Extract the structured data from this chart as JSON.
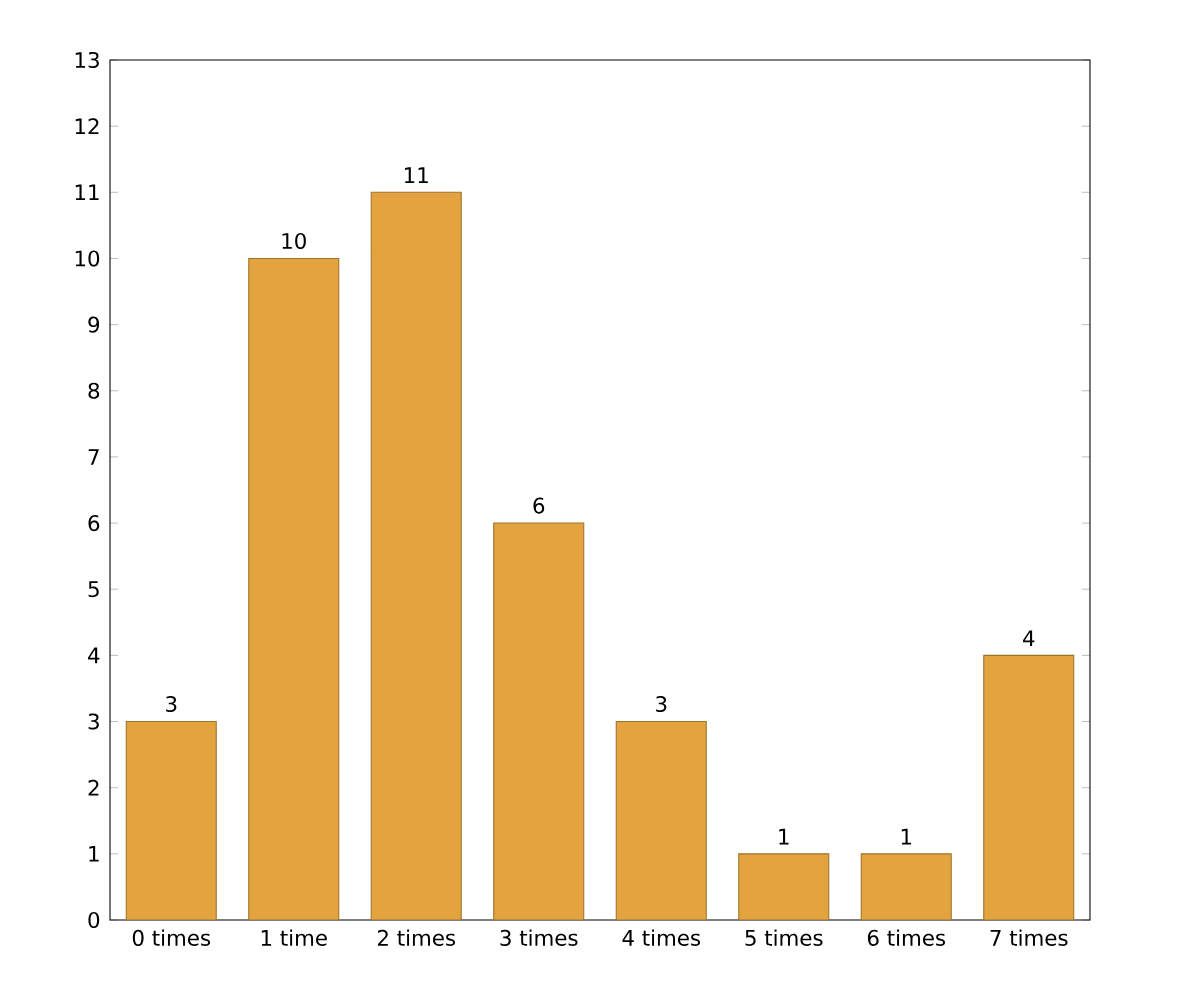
{
  "chart_data": {
    "type": "bar",
    "categories": [
      "0 times",
      "1 time",
      "2 times",
      "3 times",
      "4 times",
      "5 times",
      "6 times",
      "7 times"
    ],
    "values": [
      3,
      10,
      11,
      6,
      3,
      1,
      1,
      4
    ],
    "color": "#e3a33f",
    "ylim": [
      0,
      13
    ],
    "yticks": [
      0,
      1,
      2,
      3,
      4,
      5,
      6,
      7,
      8,
      9,
      10,
      11,
      12,
      13
    ],
    "data_labels": true
  }
}
